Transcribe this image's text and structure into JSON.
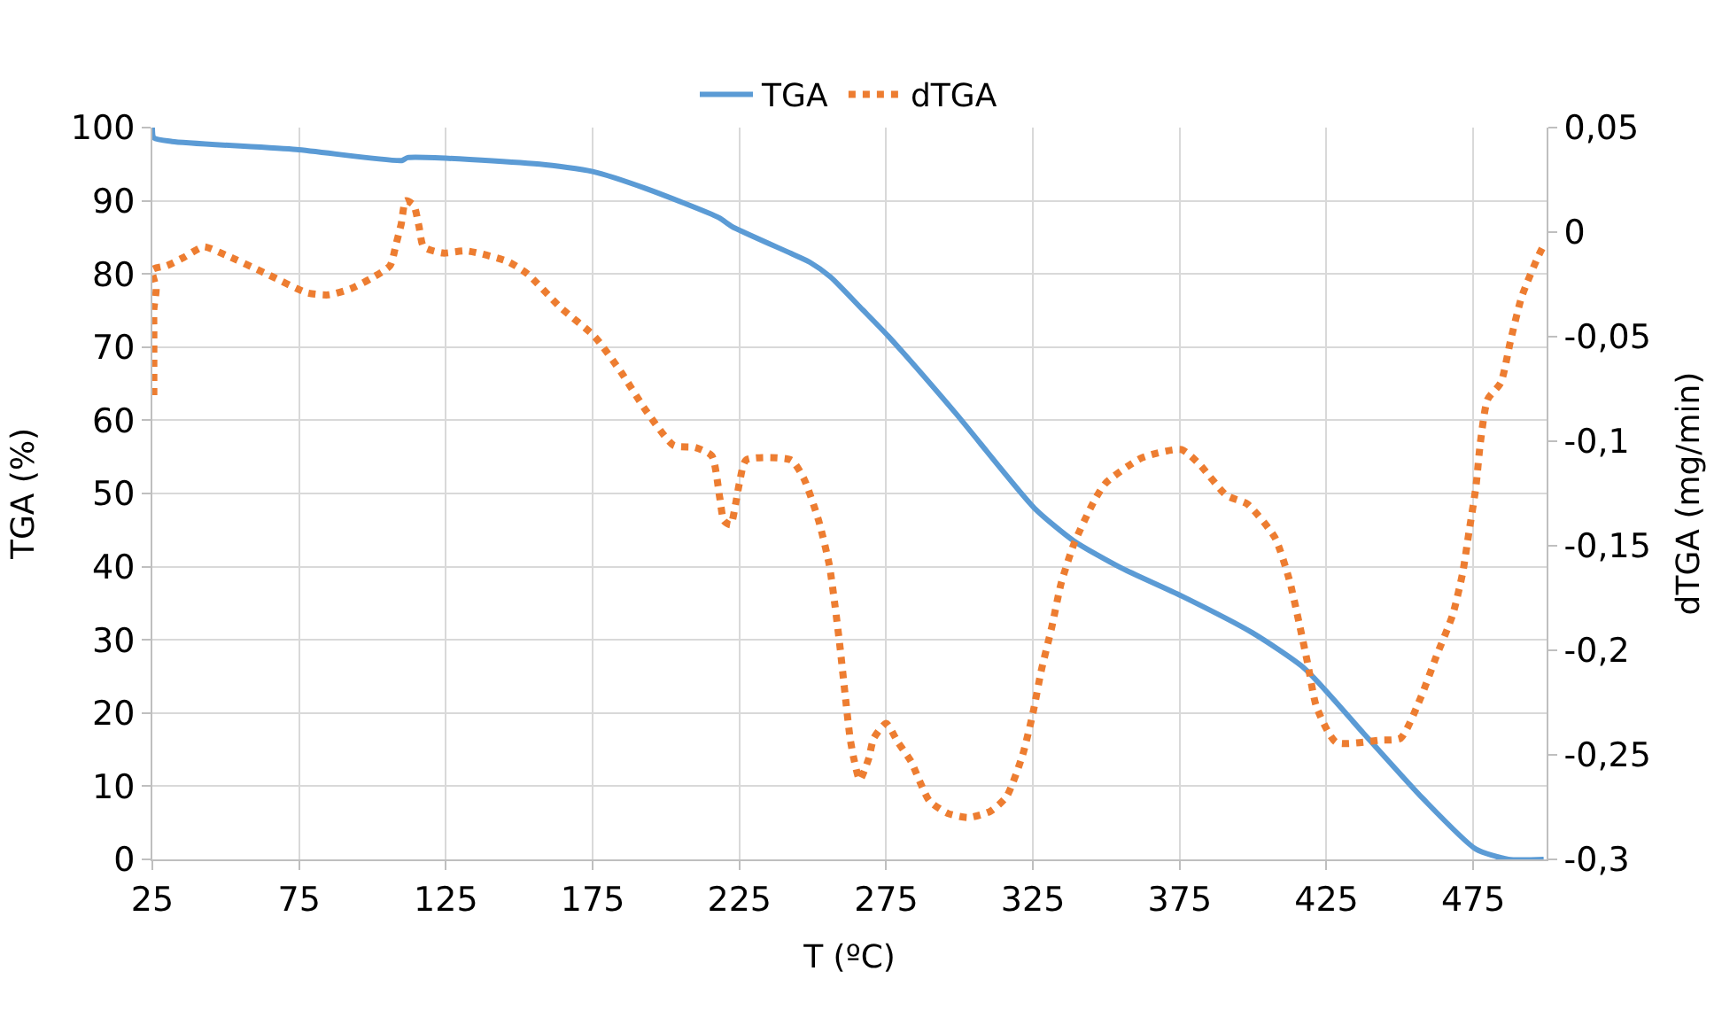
{
  "chart_data": {
    "type": "line",
    "xlabel": "T (ºC)",
    "ylabel": "TGA (%)",
    "y2label": "dTGA (mg/min)",
    "xlim": [
      25,
      500
    ],
    "xticks": [
      25,
      75,
      125,
      175,
      225,
      275,
      325,
      375,
      425,
      475
    ],
    "ylim": [
      0,
      100
    ],
    "yticks": [
      0,
      10,
      20,
      30,
      40,
      50,
      60,
      70,
      80,
      90,
      100
    ],
    "y2lim": [
      -0.3,
      0.05
    ],
    "y2ticks": [
      {
        "value": -0.3,
        "label": "-0,3"
      },
      {
        "value": -0.25,
        "label": "-0,25"
      },
      {
        "value": -0.2,
        "label": "-0,2"
      },
      {
        "value": -0.15,
        "label": "-0,15"
      },
      {
        "value": -0.1,
        "label": "-0,1"
      },
      {
        "value": -0.05,
        "label": "-0,05"
      },
      {
        "value": 0,
        "label": "0"
      },
      {
        "value": 0.05,
        "label": "0,05"
      }
    ],
    "grid": true,
    "legend": "top",
    "marker": "none",
    "series": [
      {
        "name": "TGA",
        "color": "#5b9bd5",
        "line_style": "solid",
        "x": [
          25,
          25.5,
          31.7,
          74,
          110,
          112,
          157,
          175,
          193,
          218,
          222.4,
          242.6,
          249,
          256,
          267,
          275.7,
          298.6,
          325.5,
          339,
          354.7,
          375.6,
          399.6,
          417.5,
          437.7,
          457.9,
          475.9,
          487,
          499
        ],
        "values": [
          100,
          98.6,
          98.1,
          97.0,
          95.5,
          95.9,
          95.0,
          94.0,
          91.7,
          87.7,
          86.5,
          82.8,
          81.6,
          79.6,
          75.1,
          71.5,
          61.0,
          48.0,
          43.5,
          39.9,
          36.0,
          31.0,
          26.1,
          17.2,
          8.3,
          1.4,
          0,
          0
        ]
      },
      {
        "name": "dTGA",
        "color": "#ed7d31",
        "line_style": "dotted",
        "axis": "y2",
        "x": [
          25.5,
          25.5,
          25.5,
          26.3,
          25,
          30,
          35.8,
          42.5,
          50,
          64,
          77.7,
          85,
          92.7,
          99.7,
          106,
          108,
          109.8,
          111.3,
          114,
          115.8,
          117.4,
          124,
          132,
          146,
          152.8,
          164,
          175.7,
          184.7,
          193,
          202.6,
          210,
          215.6,
          218.3,
          219.7,
          222,
          223.7,
          225,
          227.3,
          242.6,
          247,
          252,
          255.6,
          257.6,
          259.4,
          261,
          262.7,
          264,
          266,
          269,
          270.8,
          275,
          279,
          283.4,
          289.7,
          296,
          303,
          310.5,
          316,
          321.5,
          325,
          327.8,
          331.4,
          334.6,
          339,
          345.7,
          349.8,
          362,
          375.6,
          381.7,
          391,
          398,
          407.4,
          412.3,
          415.7,
          418.7,
          421.6,
          428.3,
          443.3,
          450.3,
          457,
          462.4,
          468,
          471.4,
          473.6,
          475.9,
          477.4,
          479.9,
          484.4,
          487.7,
          491.5,
          497,
          499.5
        ],
        "values": [
          -0.078,
          -0.047,
          -0.037,
          -0.027,
          -0.018,
          -0.016,
          -0.012,
          -0.007,
          -0.011,
          -0.02,
          -0.029,
          -0.03,
          -0.027,
          -0.022,
          -0.016,
          -0.006,
          0.004,
          0.015,
          0.013,
          0.003,
          -0.007,
          -0.01,
          -0.009,
          -0.014,
          -0.02,
          -0.036,
          -0.05,
          -0.067,
          -0.085,
          -0.102,
          -0.103,
          -0.107,
          -0.127,
          -0.138,
          -0.14,
          -0.13,
          -0.12,
          -0.109,
          -0.109,
          -0.118,
          -0.138,
          -0.159,
          -0.179,
          -0.2,
          -0.221,
          -0.242,
          -0.252,
          -0.262,
          -0.252,
          -0.242,
          -0.235,
          -0.244,
          -0.253,
          -0.272,
          -0.278,
          -0.28,
          -0.277,
          -0.27,
          -0.25,
          -0.23,
          -0.21,
          -0.189,
          -0.168,
          -0.149,
          -0.129,
          -0.12,
          -0.108,
          -0.104,
          -0.111,
          -0.126,
          -0.13,
          -0.146,
          -0.166,
          -0.187,
          -0.207,
          -0.227,
          -0.244,
          -0.243,
          -0.242,
          -0.223,
          -0.203,
          -0.183,
          -0.163,
          -0.143,
          -0.122,
          -0.101,
          -0.08,
          -0.072,
          -0.052,
          -0.031,
          -0.012,
          -0.005
        ]
      }
    ]
  }
}
